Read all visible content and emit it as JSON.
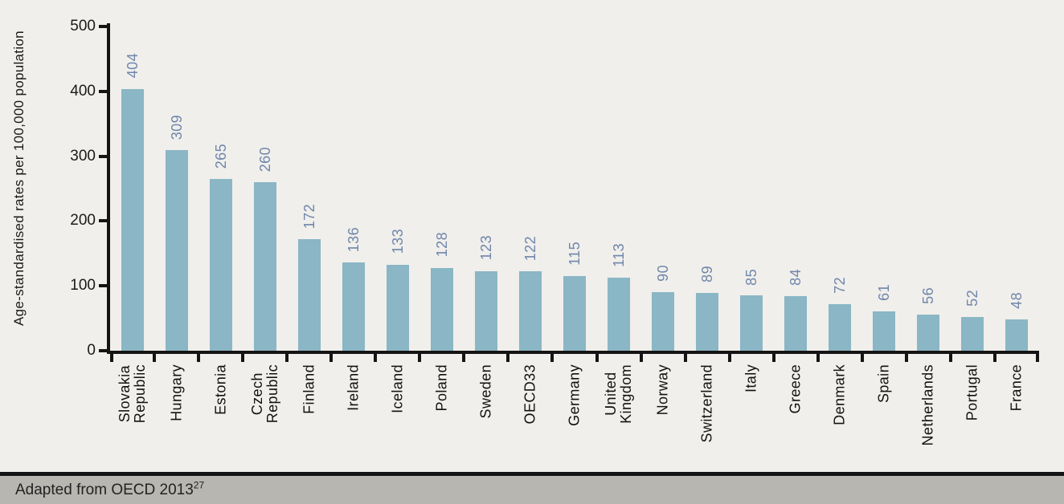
{
  "colors": {
    "background": "#f0efeb",
    "bar": "#8ab6c5",
    "value_label": "#7086ab",
    "axis": "#141414",
    "footer_background": "#b8b6b0",
    "footer_text": "#222222"
  },
  "chart_data": {
    "type": "bar",
    "title": "",
    "xlabel": "",
    "ylabel": "Age-standardised rates per 100,000 population",
    "ylim": [
      0,
      500
    ],
    "yticks": [
      0,
      100,
      200,
      300,
      400,
      500
    ],
    "grid": false,
    "legend_position": "none",
    "bar_value_labels_shown": true,
    "label_rotation_degrees": 90,
    "categories": [
      "Slovakia\nRepublic",
      "Hungary",
      "Estonia",
      "Czech\nRepublic",
      "Finland",
      "Ireland",
      "Iceland",
      "Poland",
      "Sweden",
      "OECD33",
      "Germany",
      "United\nKingdom",
      "Norway",
      "Switzerland",
      "Italy",
      "Greece",
      "Denmark",
      "Spain",
      "Netherlands",
      "Portugal",
      "France"
    ],
    "values": [
      404,
      309,
      265,
      260,
      172,
      136,
      133,
      128,
      123,
      122,
      115,
      113,
      90,
      89,
      85,
      84,
      72,
      61,
      56,
      52,
      48
    ]
  },
  "footer": {
    "text": "Adapted from OECD 2013",
    "superscript": "27"
  }
}
